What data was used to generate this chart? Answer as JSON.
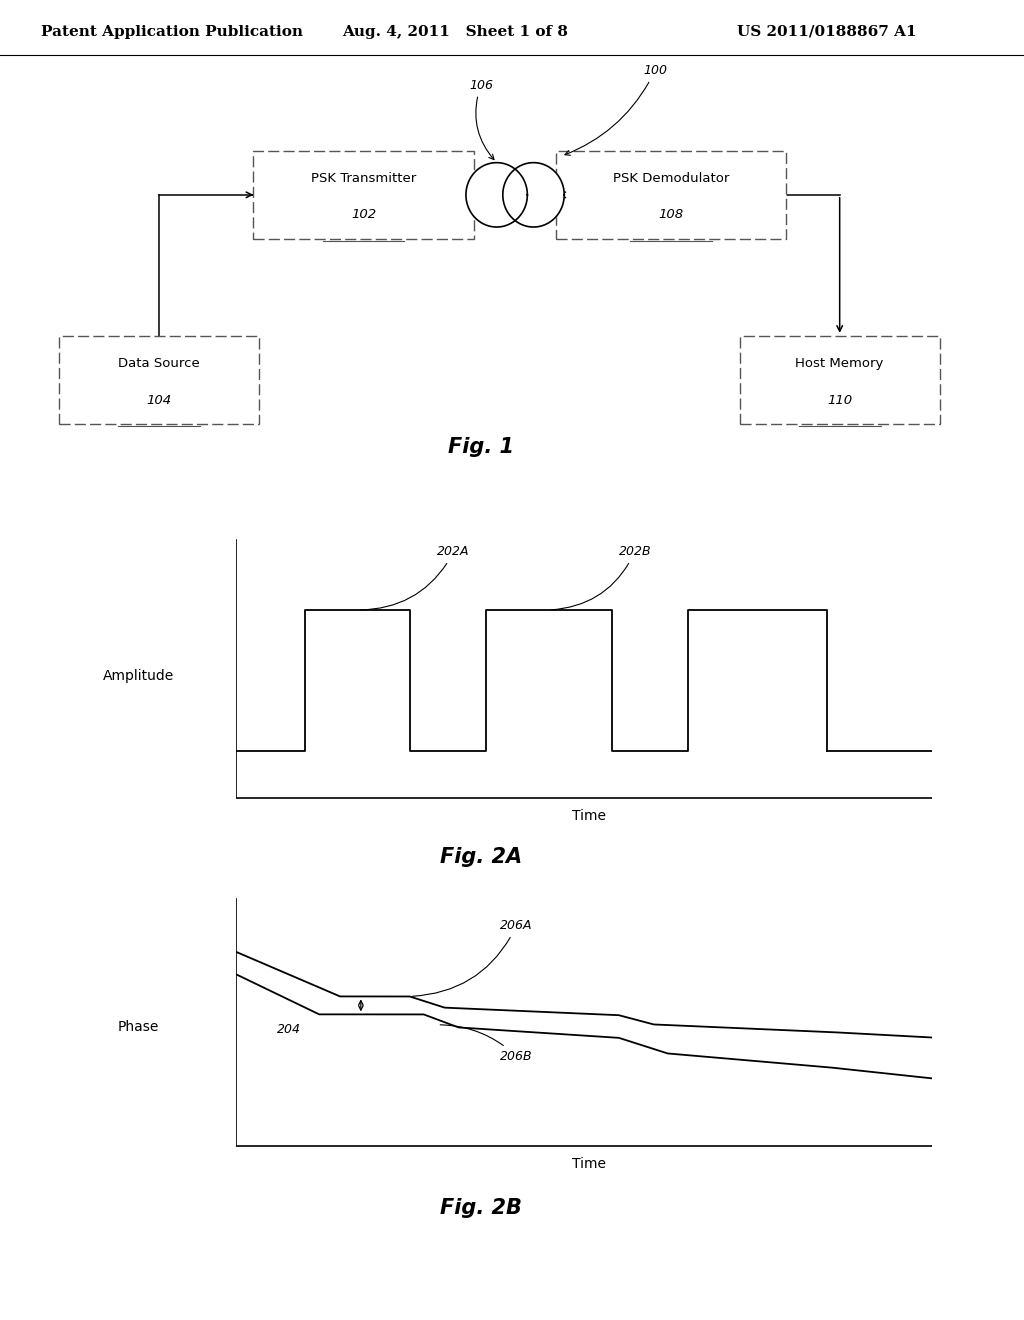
{
  "bg": "#ffffff",
  "header_left": "Patent Application Publication",
  "header_mid": "Aug. 4, 2011   Sheet 1 of 8",
  "header_right": "US 2011/0188867 A1",
  "fig1_caption": "Fig. 1",
  "fig2a_caption": "Fig. 2A",
  "fig2b_caption": "Fig. 2B",
  "fig2a_xlabel": "Time",
  "fig2a_ylabel": "Amplitude",
  "fig2b_xlabel": "Time",
  "fig2b_ylabel": "Phase",
  "label_202A": "202A",
  "label_202B": "202B",
  "label_204": "204",
  "label_206A": "206A",
  "label_206B": "206B",
  "label_100": "100",
  "label_106": "106",
  "psk_tx": "PSK Transmitter",
  "psk_tx_num": "102",
  "psk_dem": "PSK Demodulator",
  "psk_dem_num": "108",
  "data_src": "Data Source",
  "data_src_num": "104",
  "host_mem": "Host Memory",
  "host_mem_num": "110"
}
